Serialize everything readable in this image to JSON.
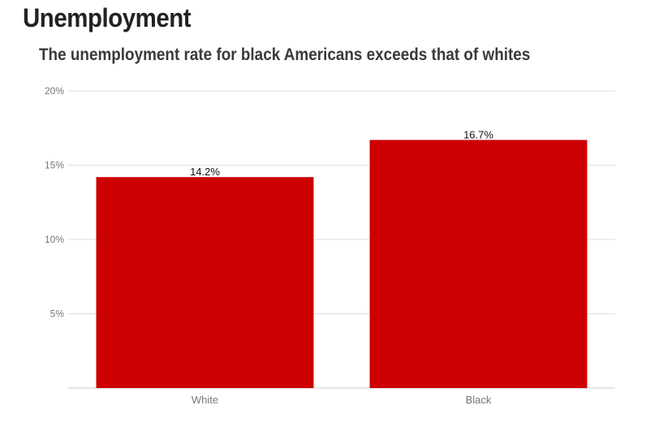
{
  "title": "Unemployment",
  "subtitle": "The unemployment rate for black Americans exceeds that of whites",
  "colors": {
    "bar": "#cc0000",
    "grid": "#dddddd",
    "axis": "#cccccc"
  },
  "chart_data": {
    "type": "bar",
    "categories": [
      "White",
      "Black"
    ],
    "values": [
      14.2,
      16.7
    ],
    "data_labels": [
      "14.2%",
      "16.7%"
    ],
    "ylim": [
      0,
      20
    ],
    "yticks": [
      5,
      10,
      15,
      20
    ],
    "ytick_labels": [
      "5%",
      "10%",
      "15%",
      "20%"
    ],
    "grid": true,
    "legend": "none"
  }
}
